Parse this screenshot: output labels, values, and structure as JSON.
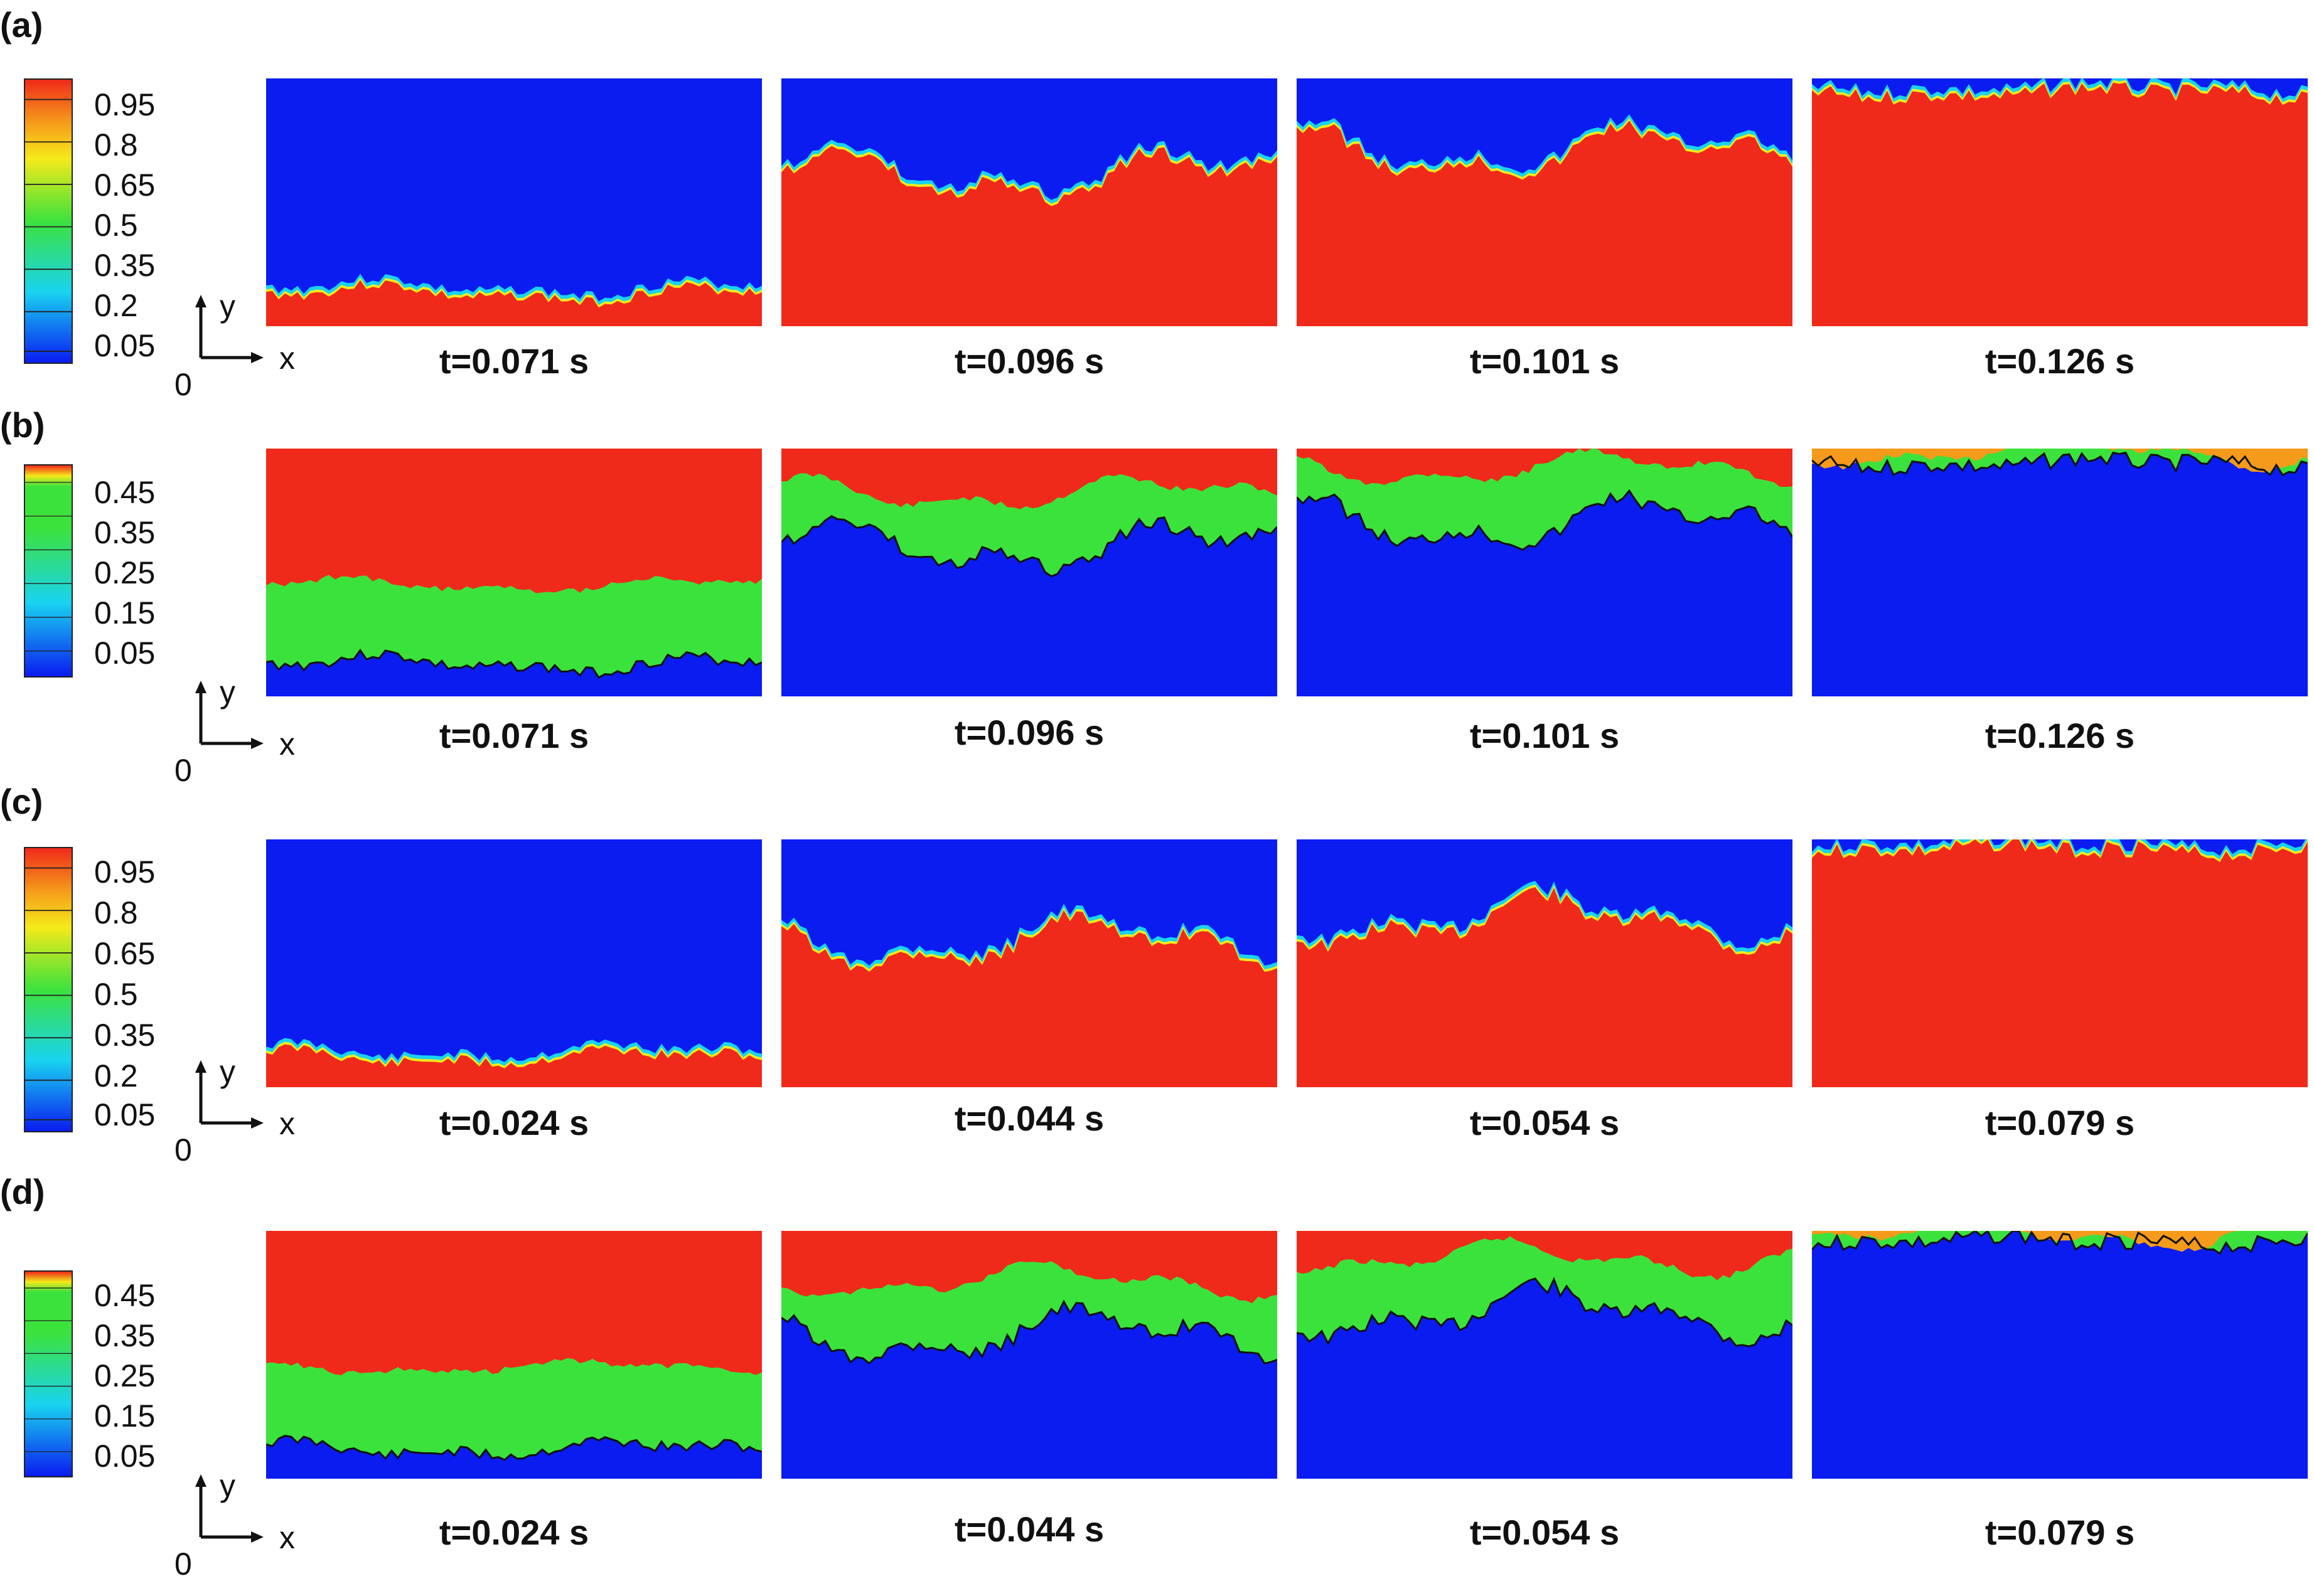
{
  "rows": [
    {
      "label": "(a)",
      "colorbar": {
        "scheme": "rainbow",
        "ticks": [
          "0.95",
          "0.8",
          "0.65",
          "0.5",
          "0.35",
          "0.2",
          "0.05"
        ]
      },
      "axes": {
        "x": "x",
        "y": "y",
        "origin": "0"
      },
      "times": [
        "t=0.071 s",
        "t=0.096 s",
        "t=0.101 s",
        "t=0.126 s"
      ],
      "panel_fields": [
        "a1",
        "a2",
        "a3",
        "a4"
      ]
    },
    {
      "label": "(b)",
      "colorbar": {
        "scheme": "rainbow-half",
        "ticks": [
          "0.45",
          "0.35",
          "0.25",
          "0.15",
          "0.05"
        ]
      },
      "axes": {
        "x": "x",
        "y": "y",
        "origin": "0"
      },
      "times": [
        "t=0.071 s",
        "t=0.096 s",
        "t=0.101 s",
        "t=0.126 s"
      ],
      "panel_fields": [
        "b1",
        "b2",
        "b3",
        "b4"
      ]
    },
    {
      "label": "(c)",
      "colorbar": {
        "scheme": "rainbow",
        "ticks": [
          "0.95",
          "0.8",
          "0.65",
          "0.5",
          "0.35",
          "0.2",
          "0.05"
        ]
      },
      "axes": {
        "x": "x",
        "y": "y",
        "origin": "0"
      },
      "times": [
        "t=0.024 s",
        "t=0.044 s",
        "t=0.054 s",
        "t=0.079 s"
      ],
      "panel_fields": [
        "c1",
        "c2",
        "c3",
        "c4"
      ]
    },
    {
      "label": "(d)",
      "colorbar": {
        "scheme": "rainbow-half",
        "ticks": [
          "0.45",
          "0.35",
          "0.25",
          "0.15",
          "0.05"
        ]
      },
      "axes": {
        "x": "x",
        "y": "y",
        "origin": "0"
      },
      "times": [
        "t=0.024 s",
        "t=0.044 s",
        "t=0.054 s",
        "t=0.079 s"
      ],
      "panel_fields": [
        "d1",
        "d2",
        "d3",
        "d4"
      ]
    }
  ],
  "colors": {
    "blue": "#0a1cf0",
    "cyan": "#19d3f0",
    "green": "#3ce23c",
    "yellow": "#f5ea1a",
    "orange": "#f59a1a",
    "red": "#f02a1a",
    "contour": "#111111"
  }
}
